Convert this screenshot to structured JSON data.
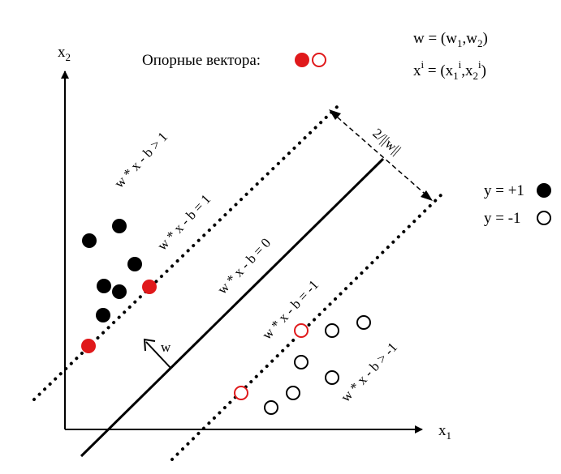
{
  "axes": {
    "x_label": "x",
    "x_sub": "1",
    "y_label": "x",
    "y_sub": "2"
  },
  "support_vectors": {
    "label": "Опорные вектора:"
  },
  "formulas": {
    "w_def": {
      "t0": "w = (w",
      "s1": "1",
      "t1": ",w",
      "s2": "2",
      "t2": ")"
    },
    "x_def": {
      "t0": "x",
      "sup_i": "i",
      "t1": " = (x",
      "s1": "1",
      "sup_i2": "i",
      "t2": ",x",
      "s2": "2",
      "sup_i3": "i",
      "t3": ")"
    }
  },
  "legend": {
    "pos": "y = +1",
    "neg": "y = -1"
  },
  "lines": {
    "gt1": "w * x - b > 1",
    "eq1": "w * x - b = 1",
    "eq0": "w * x - b = 0",
    "eqm1": "w * x - b = -1",
    "gtm1": "w * x - b > -1"
  },
  "margin_label": "2/||w||",
  "w_label": "w",
  "colors": {
    "positive": "#000000",
    "negative_fill": "#ffffff",
    "support": "#e0191b"
  }
}
